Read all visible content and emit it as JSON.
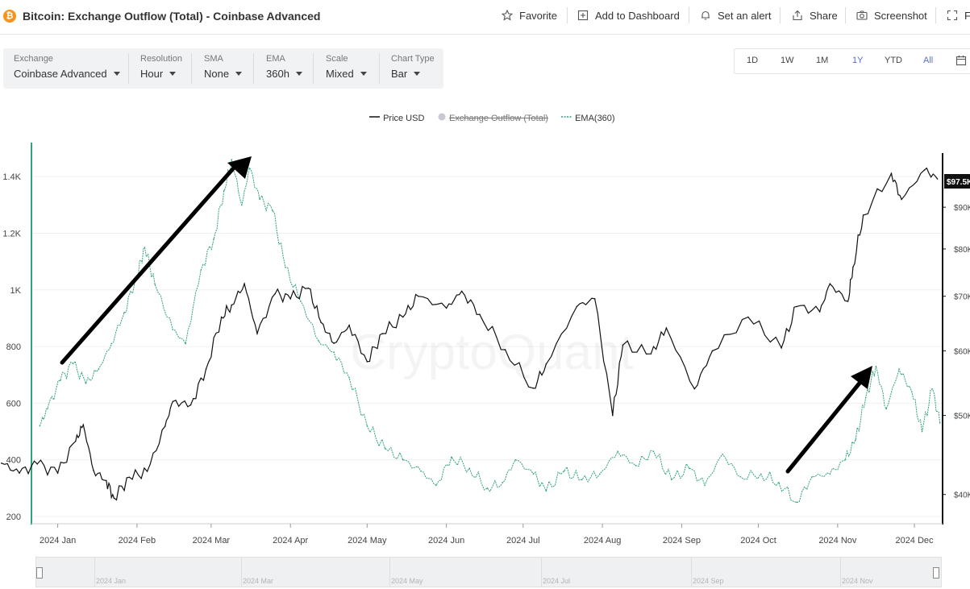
{
  "header": {
    "title": "Bitcoin: Exchange Outflow (Total) - Coinbase Advanced",
    "actions": [
      {
        "label": "Favorite",
        "icon": "star-icon"
      },
      {
        "label": "Add to Dashboard",
        "icon": "add-dashboard-icon"
      },
      {
        "label": "Set an alert",
        "icon": "bell-icon"
      },
      {
        "label": "Share",
        "icon": "share-icon"
      },
      {
        "label": "Screenshot",
        "icon": "camera-icon"
      },
      {
        "label": "F",
        "icon": "fullscreen-icon"
      }
    ]
  },
  "controls": [
    {
      "label": "Exchange",
      "value": "Coinbase Advanced"
    },
    {
      "label": "Resolution",
      "value": "Hour"
    },
    {
      "label": "SMA",
      "value": "None"
    },
    {
      "label": "EMA",
      "value": "360h"
    },
    {
      "label": "Scale",
      "value": "Mixed"
    },
    {
      "label": "Chart Type",
      "value": "Bar"
    }
  ],
  "ranges": {
    "items": [
      "1D",
      "1W",
      "1M",
      "1Y",
      "YTD",
      "All"
    ],
    "active": "1Y"
  },
  "legend": [
    {
      "label": "Price USD",
      "color": "#111111",
      "state": "visible"
    },
    {
      "label": "Exchange Outflow (Total)",
      "color": "#c9c9d1",
      "state": "hidden"
    },
    {
      "label": "EMA(360)",
      "color": "#2fa37a",
      "state": "visible"
    }
  ],
  "watermark": "CryptoQuant",
  "colors": {
    "price": "#111111",
    "ema": "#2fa37a",
    "left_axis": "#2fa37a",
    "arrow": "#000000",
    "price_tag_bg": "#111111"
  },
  "chart_data": {
    "type": "line",
    "x_ticks": [
      "2024 Jan",
      "2024 Feb",
      "2024 Mar",
      "2024 Apr",
      "2024 May",
      "2024 Jun",
      "2024 Jul",
      "2024 Aug",
      "2024 Sep",
      "2024 Oct",
      "2024 Nov",
      "2024 Dec"
    ],
    "left_axis": {
      "ticks": [
        "200",
        "400",
        "600",
        "800",
        "1K",
        "1.2K",
        "1.4K"
      ],
      "values": [
        200,
        400,
        600,
        800,
        1000,
        1200,
        1400
      ],
      "range": [
        180,
        1520
      ]
    },
    "right_axis": {
      "ticks": [
        "$40K",
        "$50K",
        "$60K",
        "$70K",
        "$80K",
        "$90K"
      ],
      "values": [
        40000,
        50000,
        60000,
        70000,
        80000,
        90000
      ],
      "scale": "log",
      "range": [
        37000,
        108000
      ]
    },
    "current_price_label": "$97.5K",
    "series": [
      {
        "name": "Price USD",
        "axis": "right",
        "points": [
          [
            "2023-12-10",
            43700
          ],
          [
            "2023-12-17",
            42500
          ],
          [
            "2023-12-24",
            43600
          ],
          [
            "2024-01-01",
            42500
          ],
          [
            "2024-01-08",
            46500
          ],
          [
            "2024-01-11",
            48700
          ],
          [
            "2024-01-15",
            42800
          ],
          [
            "2024-01-20",
            41600
          ],
          [
            "2024-01-23",
            39600
          ],
          [
            "2024-01-29",
            42000
          ],
          [
            "2024-02-05",
            42700
          ],
          [
            "2024-02-12",
            48500
          ],
          [
            "2024-02-15",
            52000
          ],
          [
            "2024-02-22",
            51500
          ],
          [
            "2024-02-28",
            57000
          ],
          [
            "2024-03-05",
            66000
          ],
          [
            "2024-03-09",
            68300
          ],
          [
            "2024-03-14",
            72500
          ],
          [
            "2024-03-19",
            63000
          ],
          [
            "2024-03-26",
            70500
          ],
          [
            "2024-04-01",
            69500
          ],
          [
            "2024-04-08",
            71600
          ],
          [
            "2024-04-13",
            65000
          ],
          [
            "2024-04-18",
            61300
          ],
          [
            "2024-04-24",
            64500
          ],
          [
            "2024-05-01",
            58200
          ],
          [
            "2024-05-07",
            63000
          ],
          [
            "2024-05-15",
            66000
          ],
          [
            "2024-05-21",
            70000
          ],
          [
            "2024-06-01",
            67700
          ],
          [
            "2024-06-07",
            71000
          ],
          [
            "2024-06-14",
            66500
          ],
          [
            "2024-06-24",
            60200
          ],
          [
            "2024-07-05",
            54000
          ],
          [
            "2024-07-10",
            57800
          ],
          [
            "2024-07-22",
            68000
          ],
          [
            "2024-07-29",
            69500
          ],
          [
            "2024-08-05",
            50000
          ],
          [
            "2024-08-09",
            61000
          ],
          [
            "2024-08-20",
            59500
          ],
          [
            "2024-08-26",
            64000
          ],
          [
            "2024-09-06",
            53900
          ],
          [
            "2024-09-13",
            60000
          ],
          [
            "2024-09-27",
            66000
          ],
          [
            "2024-10-10",
            60500
          ],
          [
            "2024-10-16",
            68000
          ],
          [
            "2024-10-25",
            67000
          ],
          [
            "2024-10-29",
            72500
          ],
          [
            "2024-11-05",
            69000
          ],
          [
            "2024-11-07",
            76000
          ],
          [
            "2024-11-11",
            88000
          ],
          [
            "2024-11-22",
            99000
          ],
          [
            "2024-11-26",
            92000
          ],
          [
            "2024-12-05",
            100000
          ],
          [
            "2024-12-10",
            97500
          ]
        ]
      },
      {
        "name": "EMA(360)",
        "axis": "left",
        "points": [
          [
            "2023-12-25",
            520
          ],
          [
            "2023-12-28",
            580
          ],
          [
            "2024-01-02",
            680
          ],
          [
            "2024-01-07",
            740
          ],
          [
            "2024-01-12",
            670
          ],
          [
            "2024-01-17",
            720
          ],
          [
            "2024-01-22",
            810
          ],
          [
            "2024-01-27",
            920
          ],
          [
            "2024-02-01",
            1050
          ],
          [
            "2024-02-04",
            1150
          ],
          [
            "2024-02-08",
            1020
          ],
          [
            "2024-02-15",
            860
          ],
          [
            "2024-02-20",
            810
          ],
          [
            "2024-02-26",
            1070
          ],
          [
            "2024-03-02",
            1180
          ],
          [
            "2024-03-06",
            1350
          ],
          [
            "2024-03-09",
            1460
          ],
          [
            "2024-03-13",
            1300
          ],
          [
            "2024-03-16",
            1430
          ],
          [
            "2024-03-20",
            1320
          ],
          [
            "2024-03-25",
            1280
          ],
          [
            "2024-03-30",
            1080
          ],
          [
            "2024-04-05",
            960
          ],
          [
            "2024-04-12",
            820
          ],
          [
            "2024-04-18",
            780
          ],
          [
            "2024-04-24",
            690
          ],
          [
            "2024-05-01",
            520
          ],
          [
            "2024-05-08",
            440
          ],
          [
            "2024-05-15",
            400
          ],
          [
            "2024-05-22",
            360
          ],
          [
            "2024-05-28",
            310
          ],
          [
            "2024-06-03",
            410
          ],
          [
            "2024-06-10",
            370
          ],
          [
            "2024-06-17",
            300
          ],
          [
            "2024-06-23",
            320
          ],
          [
            "2024-06-28",
            400
          ],
          [
            "2024-07-05",
            350
          ],
          [
            "2024-07-10",
            290
          ],
          [
            "2024-07-17",
            360
          ],
          [
            "2024-07-24",
            330
          ],
          [
            "2024-07-31",
            350
          ],
          [
            "2024-08-07",
            430
          ],
          [
            "2024-08-14",
            380
          ],
          [
            "2024-08-21",
            430
          ],
          [
            "2024-08-28",
            330
          ],
          [
            "2024-09-04",
            370
          ],
          [
            "2024-09-10",
            310
          ],
          [
            "2024-09-17",
            420
          ],
          [
            "2024-09-24",
            340
          ],
          [
            "2024-10-02",
            350
          ],
          [
            "2024-10-09",
            320
          ],
          [
            "2024-10-16",
            250
          ],
          [
            "2024-10-22",
            340
          ],
          [
            "2024-10-29",
            350
          ],
          [
            "2024-11-04",
            400
          ],
          [
            "2024-11-08",
            470
          ],
          [
            "2024-11-12",
            620
          ],
          [
            "2024-11-16",
            730
          ],
          [
            "2024-11-20",
            580
          ],
          [
            "2024-11-25",
            720
          ],
          [
            "2024-11-30",
            640
          ],
          [
            "2024-12-04",
            500
          ],
          [
            "2024-12-08",
            650
          ],
          [
            "2024-12-11",
            530
          ]
        ]
      }
    ],
    "annotations": [
      "arrow",
      "arrow"
    ],
    "navigator_labels": [
      "2024 Jan",
      "2024 Mar",
      "2024 May",
      "2024 Jul",
      "2024 Sep",
      "2024 Nov"
    ]
  }
}
